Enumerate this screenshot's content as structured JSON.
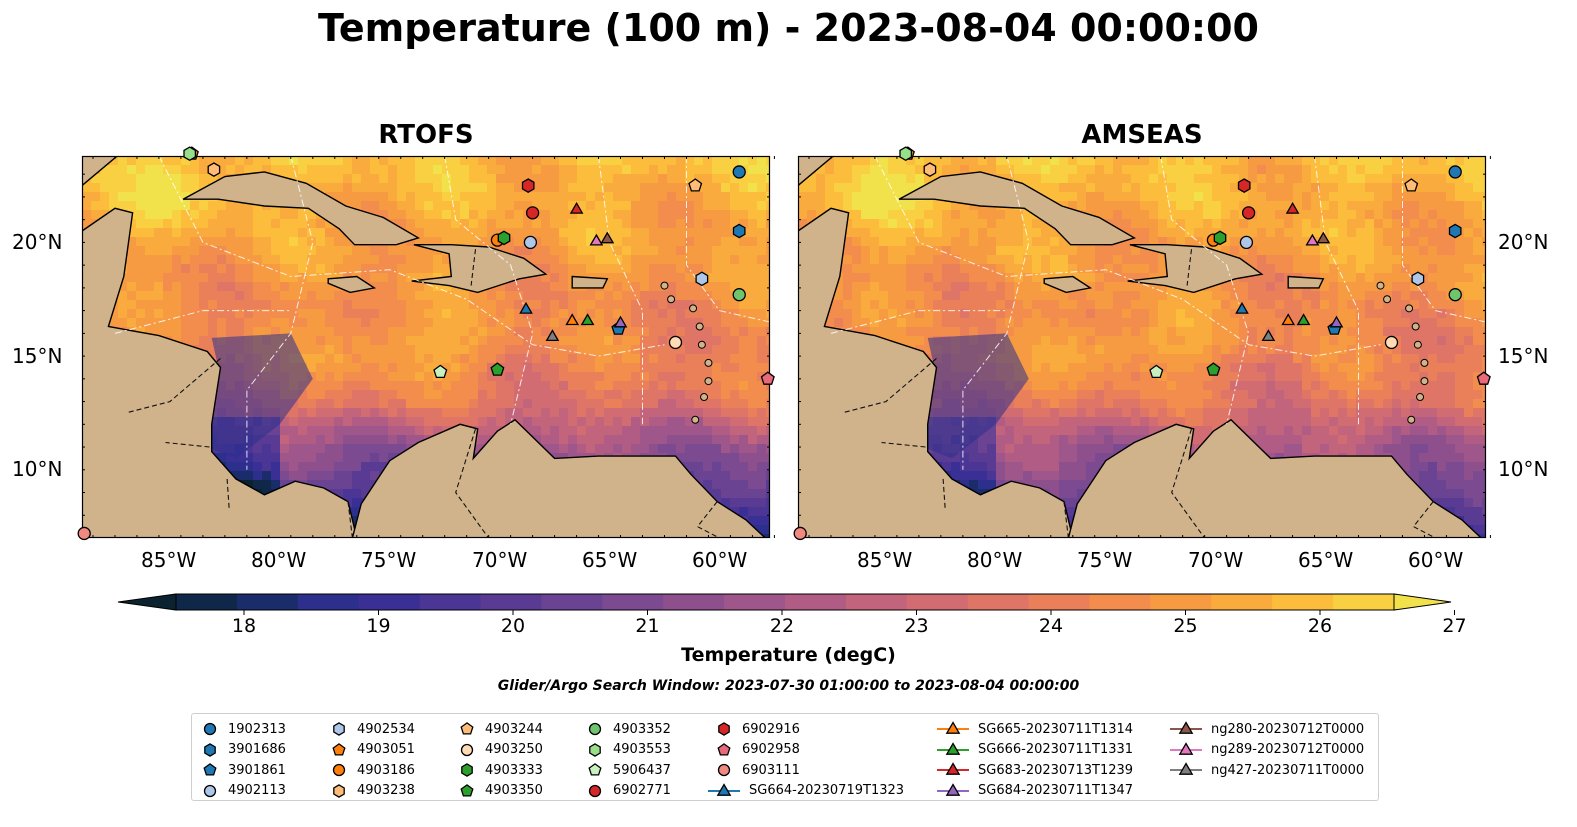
{
  "title": "Temperature (100 m) - 2023-08-04 00:00:00",
  "panels": [
    {
      "title": "RTOFS"
    },
    {
      "title": "AMSEAS"
    }
  ],
  "x_ticks": [
    "85°W",
    "80°W",
    "75°W",
    "70°W",
    "65°W",
    "60°W"
  ],
  "y_ticks": [
    "20°N",
    "15°N",
    "10°N"
  ],
  "colorbar": {
    "label": "Temperature (degC)",
    "ticks": [
      "18",
      "19",
      "20",
      "21",
      "22",
      "23",
      "24",
      "25",
      "26",
      "27"
    ],
    "range": [
      18,
      27
    ],
    "colors": [
      "#0b2330",
      "#0f2749",
      "#1b2c6b",
      "#2c2f8c",
      "#3a2f95",
      "#4b3595",
      "#5a3b93",
      "#6a4393",
      "#7b4a90",
      "#8d508d",
      "#9f568a",
      "#b15c85",
      "#c2647c",
      "#d16c72",
      "#df7566",
      "#ea8059",
      "#f28d4d",
      "#f79b42",
      "#faab3e",
      "#fcbd3c",
      "#f9d042",
      "#f1e24b"
    ]
  },
  "search_window": "Glider/Argo Search Window: 2023-07-30 01:00:00 to 2023-08-04 00:00:00",
  "map_colors": {
    "land": "#d1b38b",
    "water": "#96b9e3"
  },
  "legend": [
    [
      {
        "label": "1902313",
        "marker": "circle",
        "color": "#1f77b4"
      },
      {
        "label": "3901686",
        "marker": "hexagon",
        "color": "#1f77b4"
      },
      {
        "label": "3901861",
        "marker": "pentagon",
        "color": "#1f77b4"
      },
      {
        "label": "4902113",
        "marker": "circle",
        "color": "#aec7e8"
      }
    ],
    [
      {
        "label": "4902534",
        "marker": "hexagon",
        "color": "#aec7e8"
      },
      {
        "label": "4903051",
        "marker": "pentagon",
        "color": "#ff7f0e"
      },
      {
        "label": "4903186",
        "marker": "circle",
        "color": "#ff7f0e"
      },
      {
        "label": "4903238",
        "marker": "hexagon",
        "color": "#ffbb78"
      }
    ],
    [
      {
        "label": "4903244",
        "marker": "pentagon",
        "color": "#ffbb78"
      },
      {
        "label": "4903250",
        "marker": "circle",
        "color": "#ffdcb5"
      },
      {
        "label": "4903333",
        "marker": "hexagon",
        "color": "#2ca02c"
      },
      {
        "label": "4903350",
        "marker": "pentagon",
        "color": "#2ca02c"
      }
    ],
    [
      {
        "label": "4903352",
        "marker": "circle",
        "color": "#6ec56e"
      },
      {
        "label": "4903553",
        "marker": "hexagon",
        "color": "#98df8a"
      },
      {
        "label": "5906437",
        "marker": "pentagon",
        "color": "#c7f2bf"
      },
      {
        "label": "6902771",
        "marker": "circle",
        "color": "#d62728"
      }
    ],
    [
      {
        "label": "6902916",
        "marker": "hexagon",
        "color": "#d62728"
      },
      {
        "label": "6902958",
        "marker": "pentagon",
        "color": "#e8697a"
      },
      {
        "label": "6903111",
        "marker": "circle",
        "color": "#f08a80"
      },
      {
        "label": "SG664-20230719T1323",
        "marker": "triangle-line",
        "color": "#1f77b4"
      }
    ],
    [
      {
        "label": "SG665-20230711T1314",
        "marker": "triangle-line",
        "color": "#ff7f0e"
      },
      {
        "label": "SG666-20230711T1331",
        "marker": "triangle-line",
        "color": "#2ca02c"
      },
      {
        "label": "SG683-20230713T1239",
        "marker": "triangle-line",
        "color": "#d62728"
      },
      {
        "label": "SG684-20230711T1347",
        "marker": "triangle-line",
        "color": "#9467bd"
      }
    ],
    [
      {
        "label": "ng280-20230712T0000",
        "marker": "triangle-line",
        "color": "#8c564b"
      },
      {
        "label": "ng289-20230712T0000",
        "marker": "triangle-line",
        "color": "#e377c2"
      },
      {
        "label": "ng427-20230711T0000",
        "marker": "triangle-line",
        "color": "#7f7f7f"
      }
    ]
  ],
  "observations": [
    {
      "id": "1902313",
      "lon": -59.6,
      "lat": 23.1,
      "marker": "circle",
      "color": "#1f77b4"
    },
    {
      "id": "3901686",
      "lon": -59.6,
      "lat": 20.5,
      "marker": "hexagon",
      "color": "#1f77b4"
    },
    {
      "id": "3901861",
      "lon": -65.1,
      "lat": 16.2,
      "marker": "pentagon",
      "color": "#1f77b4"
    },
    {
      "id": "4902113",
      "lon": -69.1,
      "lat": 20.0,
      "marker": "circle",
      "color": "#aec7e8"
    },
    {
      "id": "4902534",
      "lon": -61.3,
      "lat": 18.4,
      "marker": "hexagon",
      "color": "#aec7e8"
    },
    {
      "id": "4903051",
      "lon": -84.5,
      "lat": 23.9,
      "marker": "pentagon",
      "color": "#ff7f0e"
    },
    {
      "id": "4903186",
      "lon": -70.6,
      "lat": 20.1,
      "marker": "circle",
      "color": "#ff7f0e"
    },
    {
      "id": "4903238",
      "lon": -83.5,
      "lat": 23.2,
      "marker": "hexagon",
      "color": "#ffbb78"
    },
    {
      "id": "4903244",
      "lon": -61.6,
      "lat": 22.5,
      "marker": "pentagon",
      "color": "#ffbb78"
    },
    {
      "id": "4903250",
      "lon": -62.5,
      "lat": 15.6,
      "marker": "circle",
      "color": "#ffdcb5"
    },
    {
      "id": "4903333",
      "lon": -70.3,
      "lat": 20.2,
      "marker": "hexagon",
      "color": "#2ca02c"
    },
    {
      "id": "4903350",
      "lon": -70.6,
      "lat": 14.4,
      "marker": "pentagon",
      "color": "#2ca02c"
    },
    {
      "id": "4903352",
      "lon": -59.6,
      "lat": 17.7,
      "marker": "circle",
      "color": "#6ec56e"
    },
    {
      "id": "4903553",
      "lon": -84.6,
      "lat": 23.9,
      "marker": "hexagon",
      "color": "#98df8a"
    },
    {
      "id": "5906437",
      "lon": -73.2,
      "lat": 14.3,
      "marker": "pentagon",
      "color": "#c7f2bf"
    },
    {
      "id": "6902771",
      "lon": -69.0,
      "lat": 21.3,
      "marker": "circle",
      "color": "#d62728"
    },
    {
      "id": "6902916",
      "lon": -69.2,
      "lat": 22.5,
      "marker": "hexagon",
      "color": "#d62728"
    },
    {
      "id": "6902958",
      "lon": -58.3,
      "lat": 14.0,
      "marker": "pentagon",
      "color": "#e8697a"
    },
    {
      "id": "6903111",
      "lon": -89.4,
      "lat": 7.2,
      "marker": "circle",
      "color": "#f08a80"
    },
    {
      "id": "SG664-20230719T1323",
      "lon": -69.3,
      "lat": 17.1,
      "marker": "triangle",
      "color": "#1f77b4"
    },
    {
      "id": "SG665-20230711T1314",
      "lon": -67.2,
      "lat": 16.6,
      "marker": "triangle",
      "color": "#ff7f0e"
    },
    {
      "id": "SG666-20230711T1331",
      "lon": -66.5,
      "lat": 16.6,
      "marker": "triangle",
      "color": "#2ca02c"
    },
    {
      "id": "SG683-20230713T1239",
      "lon": -67.0,
      "lat": 21.5,
      "marker": "triangle",
      "color": "#d62728"
    },
    {
      "id": "SG684-20230711T1347",
      "lon": -65.0,
      "lat": 16.5,
      "marker": "triangle",
      "color": "#9467bd"
    },
    {
      "id": "ng280-20230712T0000",
      "lon": -65.6,
      "lat": 20.2,
      "marker": "triangle",
      "color": "#8c564b"
    },
    {
      "id": "ng289-20230712T0000",
      "lon": -66.1,
      "lat": 20.1,
      "marker": "triangle",
      "color": "#e377c2"
    },
    {
      "id": "ng427-20230711T0000",
      "lon": -68.1,
      "lat": 15.9,
      "marker": "triangle",
      "color": "#7f7f7f"
    }
  ]
}
